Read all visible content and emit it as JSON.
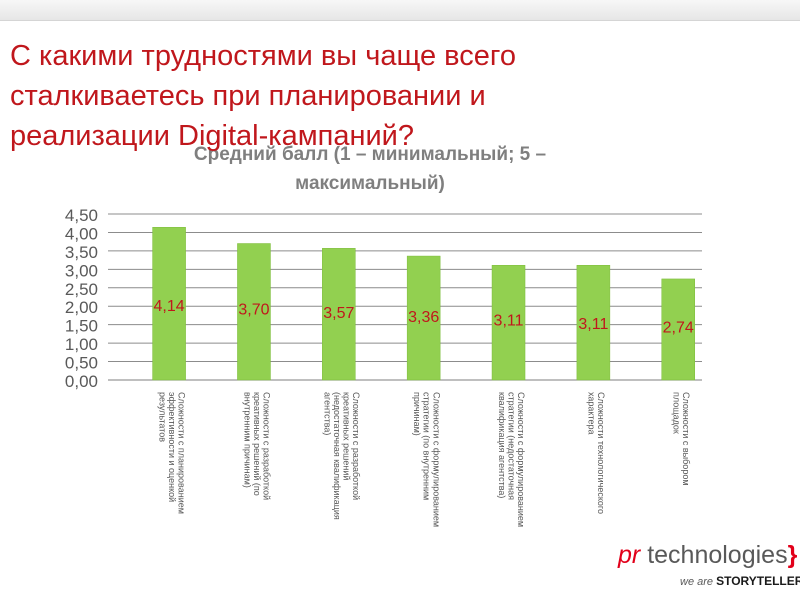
{
  "slide": {
    "title": "С какими трудностями вы чаще всего сталкиваетесь при планировании и реализации Digital-кампаний?"
  },
  "logo": {
    "pr": "pr",
    "technologies": "technologies",
    "brace": "}",
    "we_are": "we are",
    "storytellers": "STORYTELLERS."
  },
  "chart_data": {
    "type": "bar",
    "title": "Средний балл (1 – минимальный; 5 – максимальный)",
    "categories": [
      "Сложности с планированием эффективности и оценкой результатов",
      "Сложности с разработкой креативных решений (по внутренним причинам)",
      "Сложности с разработкой креативных решений (недостаточная квалификация агентства)",
      "Сложности с формулированием стратегии (по внутренним причинам)",
      "Сложности с формулированием стратегии (недостаточная квалификация агентства)",
      "Сложности технологического характера",
      "Сложности с выбором площадок"
    ],
    "values": [
      4.14,
      3.7,
      3.57,
      3.36,
      3.11,
      3.11,
      2.74
    ],
    "data_labels": [
      "4,14",
      "3,70",
      "3,57",
      "3,36",
      "3,11",
      "3,11",
      "2,74"
    ],
    "y_ticks": [
      "0,00",
      "0,50",
      "1,00",
      "1,50",
      "2,00",
      "2,50",
      "3,00",
      "3,50",
      "4,00",
      "4,50"
    ],
    "ylim": [
      0,
      4.5
    ],
    "grid": true,
    "legend": "none",
    "colors": {
      "bar": "#92d050",
      "bar_edge": "#7cbb3a",
      "data_label": "#c0171c",
      "axis_text": "#595959",
      "grid": "#8c8c8c"
    }
  }
}
